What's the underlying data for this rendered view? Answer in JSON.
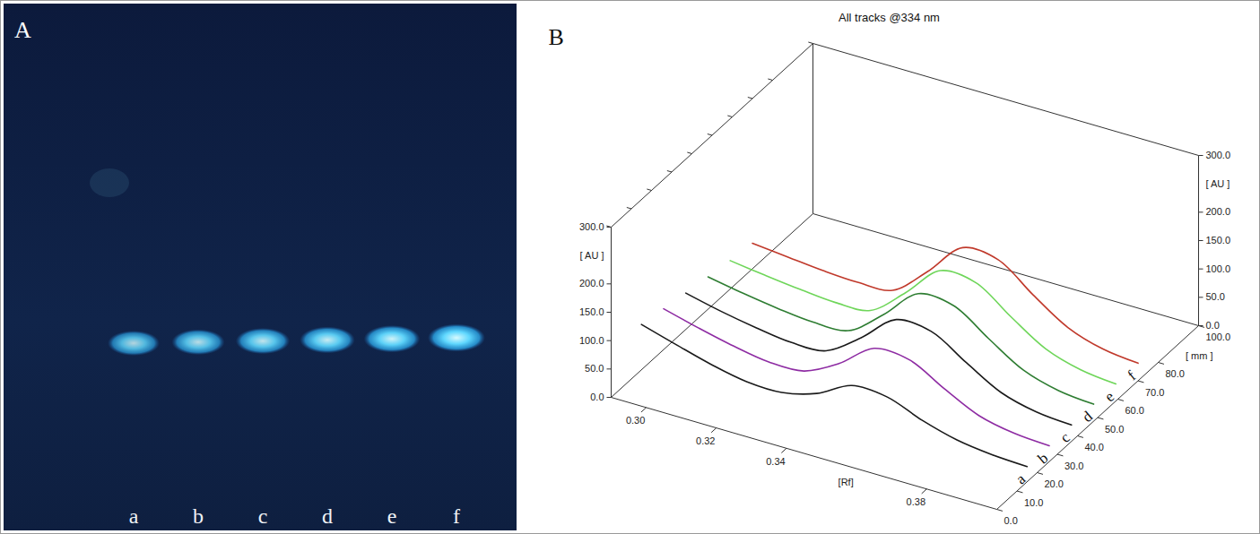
{
  "panel_a": {
    "panel_label": "A",
    "lanes": [
      "a",
      "b",
      "c",
      "d",
      "e",
      "f"
    ]
  },
  "chart_data": {
    "type": "line",
    "panel_label": "B",
    "title": "All tracks @334 nm",
    "x_label": "[Rf]",
    "y_label": "[ AU ]",
    "z_label": "[ mm ]",
    "x": [
      0.29,
      0.3,
      0.31,
      0.32,
      0.33,
      0.34,
      0.35,
      0.36,
      0.37,
      0.38,
      0.39,
      0.4
    ],
    "xlim": [
      0.29,
      0.4
    ],
    "xticks": [
      {
        "value": 0.3,
        "label": "0.30"
      },
      {
        "value": 0.32,
        "label": "0.32"
      },
      {
        "value": 0.34,
        "label": "0.34"
      },
      {
        "value": 0.38,
        "label": "0.38"
      }
    ],
    "ylim": [
      0,
      300
    ],
    "yticks": [
      {
        "value": 0,
        "label": "0.0"
      },
      {
        "value": 50,
        "label": "50.0"
      },
      {
        "value": 100,
        "label": "100.0"
      },
      {
        "value": 150,
        "label": "150.0"
      },
      {
        "value": 200,
        "label": "200.0"
      },
      {
        "value": 300,
        "label": "300.0"
      }
    ],
    "zlim": [
      0,
      100
    ],
    "zticks": [
      {
        "value": 0,
        "label": "0.0"
      },
      {
        "value": 10,
        "label": "10.0"
      },
      {
        "value": 20,
        "label": "20.0"
      },
      {
        "value": 30,
        "label": "30.0"
      },
      {
        "value": 40,
        "label": "40.0"
      },
      {
        "value": 50,
        "label": "50.0"
      },
      {
        "value": 60,
        "label": "60.0"
      },
      {
        "value": 70,
        "label": "70.0"
      },
      {
        "value": 80,
        "label": "80.0"
      },
      {
        "value": 100,
        "label": "100.0"
      }
    ],
    "series": [
      {
        "name": "a",
        "color": "#1a1a1a",
        "position_mm": 15,
        "values": [
          80,
          62,
          45,
          33,
          32,
          48,
          80,
          78,
          55,
          38,
          30,
          27
        ]
      },
      {
        "name": "b",
        "color": "#8e2ca3",
        "position_mm": 26,
        "values": [
          72,
          56,
          42,
          32,
          34,
          65,
          110,
          108,
          75,
          45,
          32,
          28
        ]
      },
      {
        "name": "c",
        "color": "#1a1a1a",
        "position_mm": 37,
        "values": [
          64,
          50,
          39,
          31,
          34,
          75,
          125,
          122,
          85,
          50,
          34,
          29
        ]
      },
      {
        "name": "d",
        "color": "#2e7d32",
        "position_mm": 48,
        "values": [
          57,
          46,
          37,
          31,
          34,
          80,
          135,
          132,
          92,
          54,
          36,
          30
        ]
      },
      {
        "name": "e",
        "color": "#6fd65a",
        "position_mm": 59,
        "values": [
          50,
          42,
          35,
          30,
          34,
          83,
          140,
          137,
          95,
          56,
          37,
          30
        ]
      },
      {
        "name": "f",
        "color": "#c0392b",
        "position_mm": 70,
        "values": [
          45,
          39,
          33,
          30,
          34,
          85,
          145,
          142,
          98,
          58,
          38,
          31
        ]
      }
    ]
  }
}
